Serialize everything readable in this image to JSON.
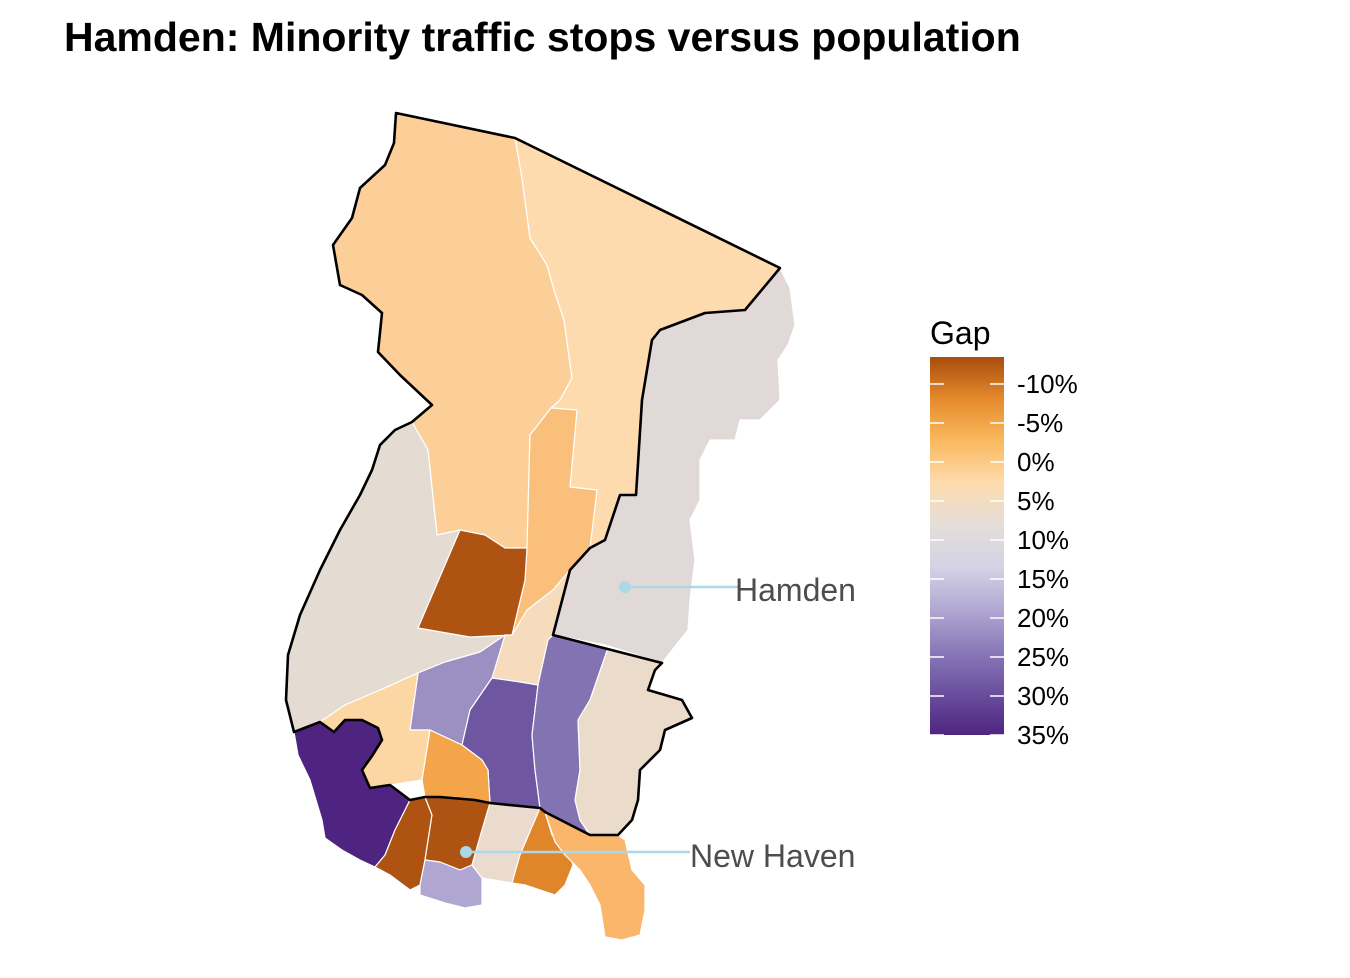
{
  "title": "Hamden: Minority traffic stops versus population",
  "legend": {
    "title": "Gap",
    "ticks": [
      "-10%",
      "-5%",
      "0%",
      "5%",
      "10%",
      "15%",
      "20%",
      "25%",
      "30%",
      "35%"
    ],
    "palette": [
      "#a84d0d",
      "#e58a2c",
      "#fab95f",
      "#fddbae",
      "#e4ddd9",
      "#d4d3e6",
      "#b1a8d3",
      "#8a7ab9",
      "#6a4f9e",
      "#4f2580"
    ]
  },
  "callouts": {
    "hamden": "Hamden",
    "new_haven": "New Haven"
  },
  "colors": {
    "callout": "#add8e6",
    "boundary": "#000000",
    "tract_border": "#ffffff"
  }
}
